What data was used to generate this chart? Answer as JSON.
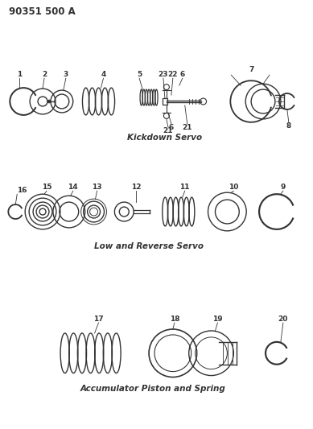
{
  "title": "90351 500 A",
  "bg_color": "#ffffff",
  "line_color": "#333333",
  "section1_label": "Kickdown Servo",
  "section2_label": "Low and Reverse Servo",
  "section3_label": "Accumulator Piston and Spring",
  "figsize": [
    3.89,
    5.33
  ],
  "dpi": 100
}
